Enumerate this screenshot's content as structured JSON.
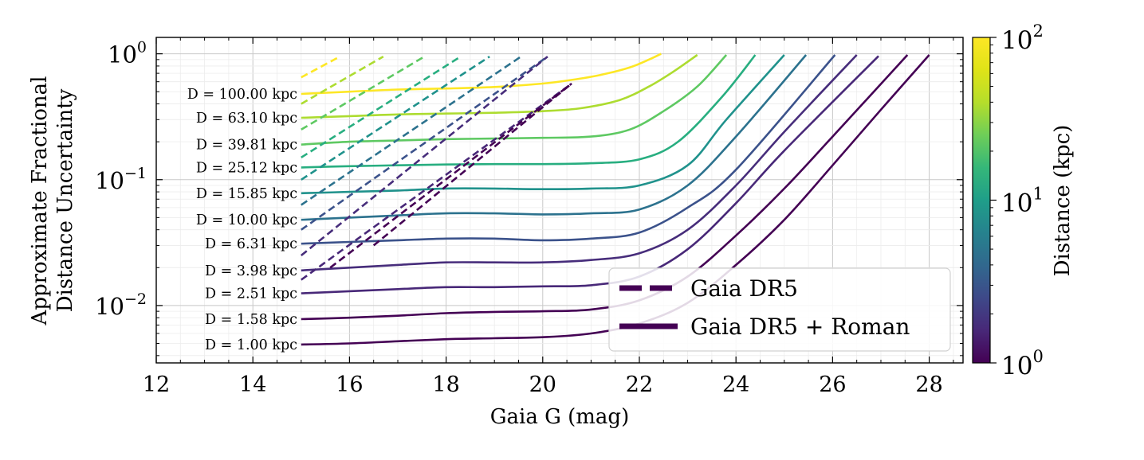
{
  "chart_data": {
    "type": "line",
    "xlabel": "Gaia G (mag)",
    "ylabel_line1": "Approximate Fractional",
    "ylabel_line2": "Distance Uncertainty",
    "xlim": [
      12,
      28.7
    ],
    "ylim": [
      0.0035,
      1.35
    ],
    "yscale": "log",
    "x_ticks": [
      "12",
      "14",
      "16",
      "18",
      "20",
      "22",
      "24",
      "26",
      "28"
    ],
    "y_ticks": [
      {
        "base": "10",
        "exp": "0",
        "value": 1
      },
      {
        "base": "10",
        "exp": "−1",
        "value": 0.1
      },
      {
        "base": "10",
        "exp": "−2",
        "value": 0.01
      }
    ],
    "grid": true,
    "legend_position": "lower-right",
    "legend": [
      {
        "label": "Gaia DR5",
        "style": "dashed"
      },
      {
        "label": "Gaia DR5 + Roman",
        "style": "solid"
      }
    ],
    "colorbar": {
      "label": "Distance (kpc)",
      "scale": "log",
      "range": [
        1,
        100
      ],
      "ticks": [
        {
          "base": "10",
          "exp": "2",
          "value": 100
        },
        {
          "base": "10",
          "exp": "1",
          "value": 10
        },
        {
          "base": "10",
          "exp": "0",
          "value": 1
        }
      ]
    },
    "series": [
      {
        "name": "D = 100.00 kpc",
        "distance_kpc": 100.0,
        "color": "#fde725",
        "roman": {
          "x": [
            15,
            16,
            17,
            18,
            19,
            20,
            20.6,
            21.2,
            21.8,
            22.2,
            22.45
          ],
          "y": [
            0.48,
            0.5,
            0.52,
            0.53,
            0.545,
            0.58,
            0.62,
            0.68,
            0.78,
            0.9,
            1.0
          ]
        },
        "dr5": {
          "x": [
            15,
            15.8
          ],
          "y": [
            0.65,
            0.95
          ]
        }
      },
      {
        "name": "D = 63.10 kpc",
        "distance_kpc": 63.1,
        "color": "#addc30",
        "roman": {
          "x": [
            15,
            16,
            17,
            18,
            19,
            20,
            20.8,
            21.6,
            22.2,
            22.7,
            23.2
          ],
          "y": [
            0.31,
            0.32,
            0.33,
            0.335,
            0.34,
            0.35,
            0.37,
            0.43,
            0.55,
            0.72,
            0.98
          ]
        },
        "dr5": {
          "x": [
            15,
            16.7
          ],
          "y": [
            0.4,
            0.95
          ]
        }
      },
      {
        "name": "D = 39.81 kpc",
        "distance_kpc": 39.81,
        "color": "#5ec962",
        "roman": {
          "x": [
            15,
            16,
            17,
            18,
            19,
            20,
            21,
            21.8,
            22.5,
            23.2,
            23.8
          ],
          "y": [
            0.19,
            0.2,
            0.205,
            0.21,
            0.212,
            0.215,
            0.22,
            0.25,
            0.35,
            0.55,
            0.98
          ]
        },
        "dr5": {
          "x": [
            15,
            17.55
          ],
          "y": [
            0.25,
            0.95
          ]
        }
      },
      {
        "name": "D = 25.12 kpc",
        "distance_kpc": 25.12,
        "color": "#28ae80",
        "roman": {
          "x": [
            15,
            16,
            17,
            18,
            19,
            20,
            21,
            22,
            22.8,
            23.7,
            24.4
          ],
          "y": [
            0.125,
            0.128,
            0.13,
            0.132,
            0.133,
            0.133,
            0.135,
            0.145,
            0.2,
            0.45,
            0.98
          ]
        },
        "dr5": {
          "x": [
            15,
            18.3
          ],
          "y": [
            0.15,
            0.95
          ]
        }
      },
      {
        "name": "D = 15.85 kpc",
        "distance_kpc": 15.85,
        "color": "#20928c",
        "roman": {
          "x": [
            15,
            16,
            17,
            18,
            19,
            20,
            21,
            22,
            23,
            23.8,
            25.0
          ],
          "y": [
            0.078,
            0.08,
            0.082,
            0.085,
            0.085,
            0.084,
            0.085,
            0.09,
            0.13,
            0.3,
            0.98
          ]
        },
        "dr5": {
          "x": [
            15,
            18.9
          ],
          "y": [
            0.1,
            0.95
          ]
        }
      },
      {
        "name": "D = 10.00 kpc",
        "distance_kpc": 10.0,
        "color": "#2c728e",
        "roman": {
          "x": [
            15,
            16,
            17,
            18,
            19,
            20,
            21,
            22,
            23,
            24,
            25.45
          ],
          "y": [
            0.048,
            0.05,
            0.052,
            0.054,
            0.054,
            0.053,
            0.054,
            0.058,
            0.09,
            0.22,
            0.98
          ]
        },
        "dr5": {
          "x": [
            15,
            19.55
          ],
          "y": [
            0.063,
            0.95
          ]
        }
      },
      {
        "name": "D = 6.31 kpc",
        "distance_kpc": 6.31,
        "color": "#3b528b",
        "roman": {
          "x": [
            15,
            16,
            17,
            18,
            19,
            20,
            21,
            22,
            23,
            24,
            26.05
          ],
          "y": [
            0.031,
            0.032,
            0.033,
            0.034,
            0.034,
            0.033,
            0.034,
            0.038,
            0.06,
            0.12,
            0.98
          ]
        },
        "dr5": {
          "x": [
            15,
            20.1
          ],
          "y": [
            0.04,
            0.95
          ]
        }
      },
      {
        "name": "D = 3.98 kpc",
        "distance_kpc": 3.98,
        "color": "#472d7b",
        "roman": {
          "x": [
            15,
            16,
            17,
            18,
            19,
            20,
            21,
            22,
            23,
            24,
            25,
            26.5
          ],
          "y": [
            0.019,
            0.02,
            0.021,
            0.022,
            0.022,
            0.022,
            0.023,
            0.026,
            0.04,
            0.09,
            0.24,
            0.98
          ]
        },
        "dr5": {
          "x": [
            15,
            20.1
          ],
          "y": [
            0.025,
            0.95
          ]
        }
      },
      {
        "name": "D = 2.51 kpc",
        "distance_kpc": 2.51,
        "color": "#482878",
        "roman": {
          "x": [
            15,
            16,
            17,
            18,
            19,
            20,
            21,
            22,
            23,
            24,
            25,
            26.95
          ],
          "y": [
            0.0125,
            0.013,
            0.0135,
            0.014,
            0.014,
            0.0142,
            0.0145,
            0.017,
            0.028,
            0.065,
            0.17,
            0.96
          ]
        },
        "dr5": {
          "x": [
            15,
            20.6
          ],
          "y": [
            0.016,
            0.58
          ]
        }
      },
      {
        "name": "D = 1.58 kpc",
        "distance_kpc": 1.58,
        "color": "#440154",
        "roman": {
          "x": [
            15,
            16,
            17,
            18,
            19,
            20,
            21,
            22,
            23,
            24,
            25,
            26,
            27.55
          ],
          "y": [
            0.0078,
            0.008,
            0.0083,
            0.0087,
            0.0089,
            0.009,
            0.0093,
            0.011,
            0.017,
            0.036,
            0.085,
            0.22,
            0.98
          ]
        },
        "dr5": {
          "x": [
            16.5,
            20.6
          ],
          "y": [
            0.03,
            0.58
          ]
        }
      },
      {
        "name": "D = 1.00 kpc",
        "distance_kpc": 1.0,
        "color": "#440154",
        "roman": {
          "x": [
            15,
            16,
            17,
            18,
            19,
            20,
            21,
            22,
            23,
            24,
            25,
            26,
            27,
            28.0
          ],
          "y": [
            0.0049,
            0.005,
            0.0052,
            0.0054,
            0.0055,
            0.0056,
            0.006,
            0.0072,
            0.0105,
            0.021,
            0.048,
            0.13,
            0.36,
            0.98
          ]
        },
        "dr5": {
          "x": [
            15.6,
            20.6
          ],
          "y": [
            0.02,
            0.58
          ]
        }
      }
    ]
  }
}
